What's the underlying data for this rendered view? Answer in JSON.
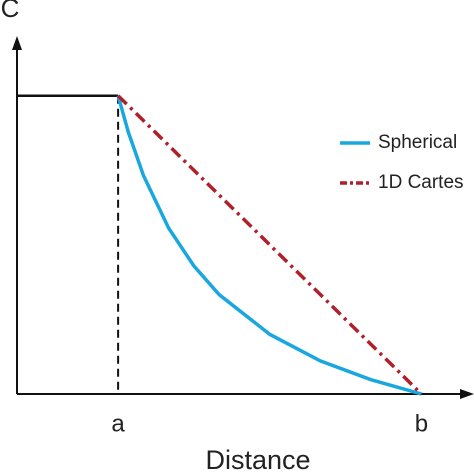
{
  "chart_data": {
    "type": "line",
    "y_label": "C",
    "x_label": "Distance",
    "xlim": [
      0,
      4.5
    ],
    "ylim": [
      0,
      1.18
    ],
    "xticks": [
      {
        "value": 1,
        "label": "a"
      },
      {
        "value": 4,
        "label": "b"
      }
    ],
    "series": [
      {
        "color": "#111111",
        "x": [
          0,
          1
        ],
        "values": [
          1,
          1
        ]
      },
      {
        "name": "Spherical",
        "color": "#1aa7e0",
        "style": "solid",
        "x": [
          1,
          1.1,
          1.25,
          1.5,
          1.75,
          2,
          2.5,
          3,
          3.5,
          4
        ],
        "values": [
          1,
          0.879,
          0.733,
          0.556,
          0.429,
          0.333,
          0.2,
          0.111,
          0.048,
          0
        ]
      },
      {
        "name": "1D Cartes",
        "color": "#b0202a",
        "style": "dashdot",
        "x": [
          1,
          4
        ],
        "values": [
          1,
          0
        ]
      }
    ]
  }
}
